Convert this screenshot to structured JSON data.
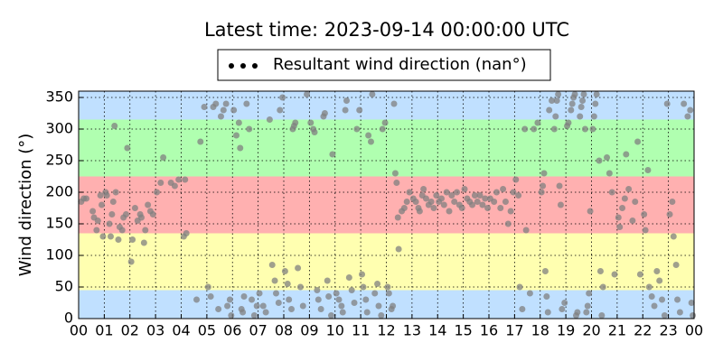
{
  "chart_data": {
    "type": "scatter",
    "title": "Latest time: 2023-09-14 00:00:00 UTC",
    "y_label": "Wind direction (°)",
    "xlim": [
      0,
      24
    ],
    "ylim": [
      0,
      360
    ],
    "xticks": [
      {
        "value": 0,
        "label": "00"
      },
      {
        "value": 1,
        "label": "01"
      },
      {
        "value": 2,
        "label": "02"
      },
      {
        "value": 3,
        "label": "03"
      },
      {
        "value": 4,
        "label": "04"
      },
      {
        "value": 5,
        "label": "05"
      },
      {
        "value": 6,
        "label": "06"
      },
      {
        "value": 7,
        "label": "07"
      },
      {
        "value": 8,
        "label": "08"
      },
      {
        "value": 9,
        "label": "09"
      },
      {
        "value": 10,
        "label": "10"
      },
      {
        "value": 11,
        "label": "11"
      },
      {
        "value": 12,
        "label": "12"
      },
      {
        "value": 13,
        "label": "13"
      },
      {
        "value": 14,
        "label": "14"
      },
      {
        "value": 15,
        "label": "15"
      },
      {
        "value": 16,
        "label": "16"
      },
      {
        "value": 17,
        "label": "17"
      },
      {
        "value": 18,
        "label": "18"
      },
      {
        "value": 19,
        "label": "19"
      },
      {
        "value": 20,
        "label": "20"
      },
      {
        "value": 21,
        "label": "21"
      },
      {
        "value": 22,
        "label": "22"
      },
      {
        "value": 23,
        "label": "23"
      },
      {
        "value": 24,
        "label": "00"
      }
    ],
    "yticks": [
      0,
      50,
      100,
      150,
      200,
      250,
      300,
      350
    ],
    "grid": true,
    "legend": "top",
    "bands": [
      {
        "from": 0,
        "to": 45,
        "color": "#c0e0ff"
      },
      {
        "from": 45,
        "to": 135,
        "color": "#ffffb0"
      },
      {
        "from": 135,
        "to": 225,
        "color": "#ffb0b0"
      },
      {
        "from": 225,
        "to": 315,
        "color": "#b0ffb0"
      },
      {
        "from": 315,
        "to": 360,
        "color": "#c0e0ff"
      }
    ],
    "series": [
      {
        "name": "Resultant wind direction (nan°)",
        "color": "#808080",
        "x": [
          0.1,
          0.2,
          0.3,
          0.55,
          0.6,
          0.7,
          0.75,
          0.85,
          0.9,
          0.95,
          1.05,
          1.1,
          1.2,
          1.25,
          1.3,
          1.35,
          1.45,
          1.4,
          1.55,
          1.6,
          1.7,
          1.75,
          1.85,
          1.9,
          2.05,
          2.1,
          2.2,
          2.3,
          2.4,
          2.45,
          2.55,
          2.6,
          2.7,
          2.8,
          2.9,
          3.05,
          3.2,
          3.3,
          3.6,
          3.75,
          3.9,
          4.1,
          4.2,
          4.15,
          4.6,
          4.75,
          4.9,
          5.05,
          5.15,
          5.25,
          5.35,
          5.45,
          5.55,
          5.65,
          5.75,
          5.8,
          5.9,
          5.95,
          6.05,
          6.15,
          6.25,
          6.3,
          6.35,
          6.4,
          6.45,
          6.55,
          6.65,
          6.75,
          6.85,
          6.95,
          7.05,
          7.2,
          7.3,
          7.45,
          7.55,
          7.65,
          7.7,
          7.8,
          7.85,
          7.95,
          8.05,
          8.15,
          8.2,
          8.3,
          8.35,
          8.4,
          8.45,
          8.55,
          8.65,
          8.75,
          8.9,
          9.05,
          9.15,
          9.2,
          9.3,
          9.35,
          9.45,
          9.55,
          9.6,
          9.7,
          9.75,
          9.85,
          9.9,
          10.05,
          10.15,
          10.25,
          10.3,
          10.4,
          10.45,
          10.55,
          10.65,
          10.75,
          10.85,
          10.95,
          11.05,
          11.1,
          11.2,
          11.25,
          11.3,
          11.4,
          11.45,
          11.55,
          11.65,
          11.7,
          11.8,
          11.85,
          11.95,
          12.05,
          12.1,
          12.2,
          12.25,
          12.3,
          12.35,
          12.4,
          12.45,
          12.48,
          12.6,
          12.7,
          12.8,
          12.9,
          13.05,
          13.15,
          13.25,
          13.3,
          13.4,
          13.45,
          13.55,
          13.65,
          13.75,
          13.85,
          13.95,
          14.05,
          14.15,
          14.25,
          14.35,
          14.45,
          14.55,
          14.65,
          14.75,
          14.85,
          14.95,
          15.05,
          15.15,
          15.25,
          15.35,
          15.45,
          15.55,
          15.65,
          15.75,
          15.85,
          15.95,
          16.05,
          16.2,
          16.3,
          16.45,
          16.55,
          16.65,
          16.75,
          16.85,
          16.95,
          17.05,
          17.15,
          17.2,
          17.3,
          17.4,
          17.45,
          17.6,
          17.75,
          17.9,
          18.05,
          18.1,
          18.15,
          18.2,
          18.25,
          18.3,
          18.35,
          18.45,
          18.55,
          18.6,
          18.65,
          18.7,
          18.75,
          18.8,
          18.85,
          18.95,
          19.05,
          19.1,
          19.2,
          19.25,
          19.3,
          19.35,
          19.4,
          19.45,
          19.55,
          19.6,
          19.65,
          19.7,
          19.75,
          19.8,
          19.85,
          19.9,
          19.95,
          20.05,
          20.1,
          20.15,
          20.2,
          20.3,
          20.35,
          20.4,
          20.45,
          20.6,
          20.7,
          20.8,
          20.9,
          21.05,
          21.1,
          21.2,
          21.3,
          21.35,
          21.45,
          21.6,
          21.7,
          21.8,
          21.9,
          22.05,
          22.1,
          22.2,
          22.25,
          22.35,
          22.45,
          22.55,
          22.65,
          22.75,
          22.85,
          22.95,
          23.05,
          23.15,
          23.2,
          23.3,
          23.35,
          23.45,
          23.6,
          23.75,
          23.85,
          23.9,
          23.95
        ],
        "values": [
          185,
          190,
          190,
          170,
          160,
          140,
          155,
          195,
          180,
          130,
          200,
          195,
          150,
          130,
          165,
          185,
          200,
          305,
          125,
          145,
          140,
          160,
          165,
          270,
          90,
          125,
          175,
          155,
          165,
          160,
          120,
          140,
          180,
          170,
          165,
          200,
          215,
          255,
          215,
          210,
          220,
          130,
          135,
          220,
          30,
          280,
          335,
          50,
          35,
          335,
          340,
          15,
          320,
          330,
          340,
          20,
          30,
          5,
          330,
          290,
          310,
          270,
          15,
          10,
          35,
          340,
          300,
          30,
          5,
          20,
          40,
          20,
          10,
          315,
          85,
          60,
          40,
          25,
          330,
          350,
          75,
          55,
          30,
          15,
          300,
          305,
          310,
          80,
          50,
          20,
          355,
          310,
          300,
          295,
          45,
          30,
          15,
          320,
          325,
          60,
          35,
          5,
          260,
          40,
          30,
          20,
          10,
          330,
          345,
          65,
          45,
          25,
          300,
          330,
          70,
          50,
          30,
          10,
          290,
          280,
          355,
          40,
          55,
          20,
          5,
          300,
          310,
          50,
          40,
          15,
          20,
          340,
          230,
          215,
          160,
          110,
          170,
          175,
          185,
          200,
          190,
          185,
          175,
          170,
          195,
          205,
          190,
          180,
          185,
          175,
          195,
          185,
          190,
          180,
          200,
          170,
          195,
          185,
          200,
          180,
          175,
          205,
          190,
          185,
          180,
          195,
          185,
          195,
          180,
          190,
          175,
          190,
          185,
          200,
          175,
          205,
          185,
          150,
          170,
          200,
          220,
          195,
          50,
          15,
          300,
          140,
          40,
          300,
          310,
          200,
          210,
          230,
          75,
          35,
          10,
          330,
          345,
          300,
          320,
          345,
          355,
          210,
          180,
          15,
          25,
          305,
          310,
          330,
          340,
          350,
          355,
          5,
          10,
          320,
          335,
          345,
          355,
          300,
          10,
          20,
          40,
          170,
          300,
          320,
          340,
          355,
          250,
          75,
          5,
          50,
          255,
          230,
          200,
          70,
          160,
          145,
          175,
          190,
          260,
          205,
          155,
          185,
          280,
          70,
          165,
          140,
          235,
          50,
          35,
          20,
          75,
          60,
          30,
          5,
          340,
          165,
          185,
          130,
          85,
          30,
          10,
          340,
          320,
          330,
          25,
          5
        ]
      }
    ]
  }
}
